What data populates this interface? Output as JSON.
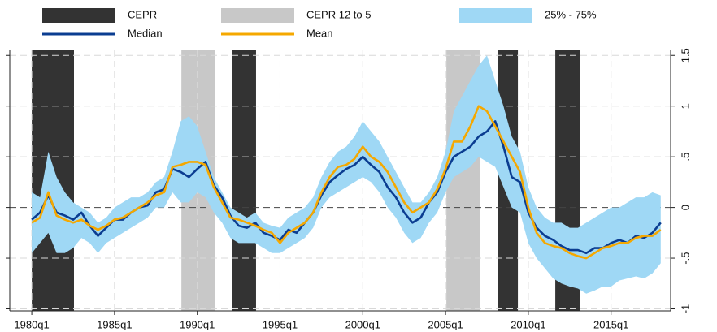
{
  "chart_data": {
    "type": "line",
    "xlim": [
      1978.67,
      2018.6
    ],
    "ylim": [
      -1.02,
      1.55
    ],
    "xticks": [
      {
        "value": 1980,
        "label": "1980q1"
      },
      {
        "value": 1985,
        "label": "1985q1"
      },
      {
        "value": 1990,
        "label": "1990q1"
      },
      {
        "value": 1995,
        "label": "1995q1"
      },
      {
        "value": 2000,
        "label": "2000q1"
      },
      {
        "value": 2005,
        "label": "2005q1"
      },
      {
        "value": 2010,
        "label": "2010q1"
      },
      {
        "value": 2015,
        "label": "2015q1"
      }
    ],
    "yticks": [
      1.5,
      1,
      {
        "value": 0.5,
        "label": ".5"
      },
      0,
      {
        "value": -0.5,
        "label": "-.5"
      },
      -1
    ],
    "grid": true,
    "shading": [
      {
        "name": "CEPR",
        "color": "#333333",
        "periods": [
          [
            1980,
            1982.55
          ],
          [
            1992.08,
            1993.55
          ],
          [
            2008.14,
            2009.37
          ],
          [
            2011.63,
            2013.1
          ]
        ]
      },
      {
        "name": "CEPR 12 to 5",
        "color": "#c8c8c8",
        "periods": [
          [
            1989.04,
            1991.05
          ],
          [
            2005.05,
            2007.06
          ]
        ]
      }
    ],
    "band": {
      "name": "25% - 75%",
      "color": "#9fd8f5",
      "lower": [
        -0.45,
        -0.35,
        -0.25,
        -0.45,
        -0.45,
        -0.4,
        -0.3,
        -0.35,
        -0.45,
        -0.35,
        -0.3,
        -0.25,
        -0.2,
        -0.15,
        -0.1,
        0.0,
        0.0,
        0.15,
        0.05,
        0.05,
        0.15,
        0.1,
        -0.05,
        -0.15,
        -0.3,
        -0.35,
        -0.35,
        -0.35,
        -0.4,
        -0.45,
        -0.45,
        -0.4,
        -0.35,
        -0.3,
        -0.2,
        0.0,
        0.1,
        0.15,
        0.2,
        0.25,
        0.3,
        0.25,
        0.15,
        0.0,
        -0.1,
        -0.25,
        -0.35,
        -0.3,
        -0.15,
        -0.05,
        0.15,
        0.3,
        0.35,
        0.4,
        0.5,
        0.45,
        0.4,
        0.2,
        0.0,
        -0.05,
        -0.35,
        -0.5,
        -0.6,
        -0.7,
        -0.75,
        -0.78,
        -0.8,
        -0.85,
        -0.82,
        -0.78,
        -0.78,
        -0.72,
        -0.7,
        -0.68,
        -0.7,
        -0.65,
        -0.55
      ],
      "upper": [
        0.15,
        0.1,
        0.55,
        0.3,
        0.15,
        0.05,
        0.0,
        -0.05,
        -0.15,
        -0.1,
        0.0,
        0.05,
        0.1,
        0.1,
        0.15,
        0.25,
        0.3,
        0.55,
        0.85,
        0.9,
        0.8,
        0.55,
        0.3,
        0.15,
        0.0,
        -0.05,
        -0.1,
        -0.05,
        -0.15,
        -0.18,
        -0.2,
        -0.1,
        -0.05,
        0.0,
        0.1,
        0.3,
        0.45,
        0.55,
        0.6,
        0.7,
        0.85,
        0.75,
        0.65,
        0.5,
        0.35,
        0.2,
        0.05,
        0.05,
        0.15,
        0.3,
        0.55,
        0.95,
        1.1,
        1.25,
        1.4,
        1.5,
        1.25,
        1.0,
        0.7,
        0.55,
        0.2,
        0.0,
        -0.1,
        -0.15,
        -0.15,
        -0.2,
        -0.2,
        -0.15,
        -0.1,
        -0.05,
        0.0,
        0.0,
        0.05,
        0.1,
        0.1,
        0.15,
        0.12
      ]
    },
    "x": [
      1980,
      1980.5,
      1981,
      1981.5,
      1982,
      1982.5,
      1983,
      1983.5,
      1984,
      1984.5,
      1985,
      1985.5,
      1986,
      1986.5,
      1987,
      1987.5,
      1988,
      1988.5,
      1989,
      1989.5,
      1990,
      1990.5,
      1991,
      1991.5,
      1992,
      1992.5,
      1993,
      1993.5,
      1994,
      1994.5,
      1995,
      1995.5,
      1996,
      1996.5,
      1997,
      1997.5,
      1998,
      1998.5,
      1999,
      1999.5,
      2000,
      2000.5,
      2001,
      2001.5,
      2002,
      2002.5,
      2003,
      2003.5,
      2004,
      2004.5,
      2005,
      2005.5,
      2006,
      2006.5,
      2007,
      2007.5,
      2008,
      2008.5,
      2009,
      2009.5,
      2010,
      2010.5,
      2011,
      2011.5,
      2012,
      2012.5,
      2013,
      2013.5,
      2014,
      2014.5,
      2015,
      2015.5,
      2016,
      2016.5,
      2017,
      2017.5,
      2018
    ],
    "series": [
      {
        "name": "Median",
        "color": "#0b3d91",
        "values": [
          -0.12,
          -0.05,
          0.12,
          -0.05,
          -0.08,
          -0.12,
          -0.05,
          -0.18,
          -0.28,
          -0.2,
          -0.12,
          -0.12,
          -0.05,
          0.0,
          0.02,
          0.15,
          0.18,
          0.38,
          0.35,
          0.3,
          0.38,
          0.45,
          0.22,
          0.1,
          -0.08,
          -0.18,
          -0.2,
          -0.15,
          -0.25,
          -0.28,
          -0.32,
          -0.22,
          -0.25,
          -0.15,
          -0.05,
          0.12,
          0.25,
          0.32,
          0.38,
          0.42,
          0.5,
          0.42,
          0.35,
          0.2,
          0.1,
          -0.05,
          -0.15,
          -0.1,
          0.05,
          0.15,
          0.35,
          0.5,
          0.55,
          0.6,
          0.7,
          0.75,
          0.85,
          0.6,
          0.3,
          0.25,
          -0.05,
          -0.2,
          -0.28,
          -0.32,
          -0.38,
          -0.42,
          -0.42,
          -0.45,
          -0.4,
          -0.4,
          -0.35,
          -0.32,
          -0.35,
          -0.28,
          -0.3,
          -0.25,
          -0.15
        ]
      },
      {
        "name": "Mean",
        "color": "#f5a800",
        "values": [
          -0.15,
          -0.1,
          0.15,
          -0.08,
          -0.12,
          -0.15,
          -0.12,
          -0.18,
          -0.22,
          -0.18,
          -0.12,
          -0.1,
          -0.05,
          0.0,
          0.05,
          0.12,
          0.15,
          0.4,
          0.42,
          0.45,
          0.45,
          0.42,
          0.2,
          0.05,
          -0.1,
          -0.12,
          -0.15,
          -0.18,
          -0.22,
          -0.25,
          -0.35,
          -0.25,
          -0.2,
          -0.15,
          -0.05,
          0.15,
          0.3,
          0.4,
          0.42,
          0.48,
          0.6,
          0.5,
          0.45,
          0.35,
          0.2,
          0.05,
          -0.05,
          0.0,
          0.05,
          0.18,
          0.38,
          0.65,
          0.65,
          0.8,
          1.0,
          0.95,
          0.8,
          0.65,
          0.5,
          0.35,
          0.0,
          -0.25,
          -0.35,
          -0.38,
          -0.4,
          -0.45,
          -0.48,
          -0.5,
          -0.45,
          -0.4,
          -0.38,
          -0.35,
          -0.35,
          -0.3,
          -0.28,
          -0.28,
          -0.22
        ]
      }
    ]
  }
}
